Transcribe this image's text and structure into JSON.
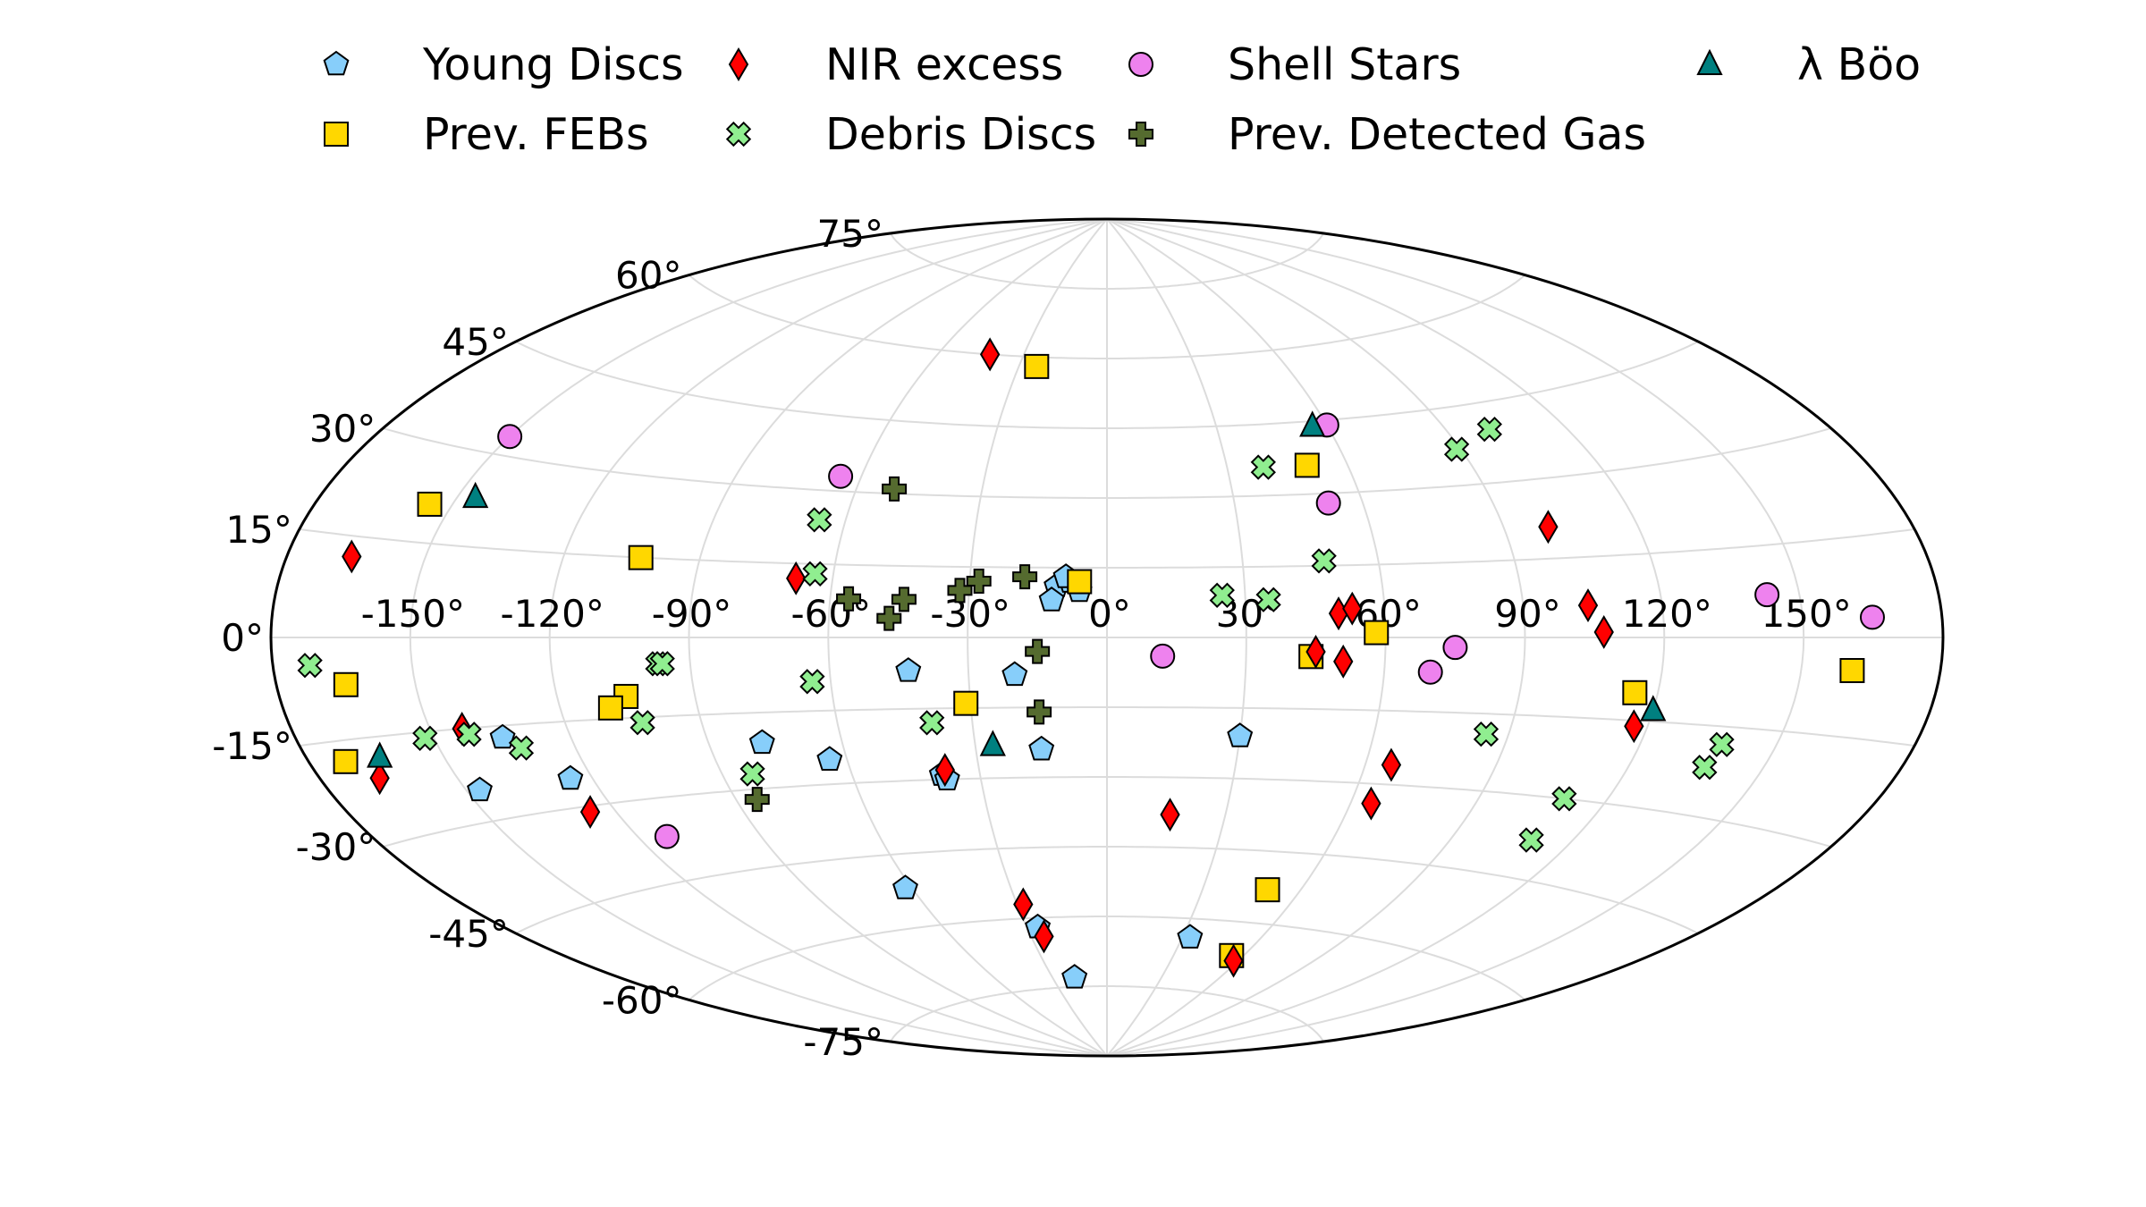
{
  "chart_data": {
    "type": "scatter",
    "projection": "aitoff",
    "x_units": "degrees",
    "y_units": "degrees",
    "xlim": [
      -180,
      180
    ],
    "ylim": [
      -90,
      90
    ],
    "grid": true,
    "legend_position": "top",
    "lon_tick_labels": [
      "-150°",
      "-120°",
      "-90°",
      "-60°",
      "-30°",
      "0°",
      "30°",
      "60°",
      "90°",
      "120°",
      "150°"
    ],
    "lat_tick_labels": [
      "-75°",
      "-60°",
      "-45°",
      "-30°",
      "-15°",
      "0°",
      "15°",
      "30°",
      "45°",
      "60°",
      "75°"
    ],
    "lon_tick_values": [
      -150,
      -120,
      -90,
      -60,
      -30,
      0,
      30,
      60,
      90,
      120,
      150
    ],
    "lat_tick_values": [
      -75,
      -60,
      -45,
      -30,
      -15,
      0,
      15,
      30,
      45,
      60,
      75
    ],
    "series": [
      {
        "name": "Young Discs",
        "marker": "pentagon",
        "color": "#87CEFA",
        "points": [
          [
            -11,
            11
          ],
          [
            -8,
            12
          ],
          [
            -9,
            13
          ],
          [
            -6,
            10
          ],
          [
            -12,
            8
          ],
          [
            -43,
            -7
          ],
          [
            -20,
            -8
          ],
          [
            -78,
            -21
          ],
          [
            -64,
            -25
          ],
          [
            -125,
            -25
          ],
          [
            -39,
            -29
          ],
          [
            -38,
            -30
          ],
          [
            -147,
            -25
          ],
          [
            -135,
            -17
          ],
          [
            -15,
            -24
          ],
          [
            30,
            -21
          ],
          [
            -26,
            -62
          ],
          [
            -18,
            -73
          ],
          [
            -62,
            -52
          ],
          [
            33,
            -64
          ]
        ]
      },
      {
        "name": "Prev. FEBs",
        "marker": "square",
        "color": "#FFD700",
        "points": [
          [
            -155,
            21
          ],
          [
            -103,
            15
          ],
          [
            -24,
            58
          ],
          [
            -6,
            12
          ],
          [
            50,
            36
          ],
          [
            58,
            1
          ],
          [
            44,
            -4
          ],
          [
            115,
            -10
          ],
          [
            161,
            -5
          ],
          [
            -165,
            -7
          ],
          [
            -105,
            -11
          ],
          [
            -109,
            -13
          ],
          [
            -31,
            -14
          ],
          [
            -172,
            -18
          ],
          [
            50,
            -53
          ],
          [
            55,
            -67
          ]
        ]
      },
      {
        "name": "NIR excess",
        "marker": "diamond",
        "color": "#FF0000",
        "points": [
          [
            -166,
            12
          ],
          [
            -68,
            12
          ],
          [
            -42,
            60
          ],
          [
            100,
            21
          ],
          [
            50,
            5
          ],
          [
            53,
            6
          ],
          [
            104,
            6
          ],
          [
            107,
            1
          ],
          [
            45,
            -3
          ],
          [
            51,
            -5
          ],
          [
            117,
            -16
          ],
          [
            -143,
            -15
          ],
          [
            -167,
            -21
          ],
          [
            -126,
            -31
          ],
          [
            -38,
            -28
          ],
          [
            16,
            -38
          ],
          [
            66,
            -26
          ],
          [
            65,
            -34
          ],
          [
            -28,
            -57
          ],
          [
            -25,
            -64
          ],
          [
            58,
            -68
          ]
        ]
      },
      {
        "name": "Debris Discs",
        "marker": "x",
        "color": "#90EE90",
        "points": [
          [
            -66,
            24
          ],
          [
            -64,
            13
          ],
          [
            39,
            36
          ],
          [
            101,
            40
          ],
          [
            89,
            37
          ],
          [
            48,
            16
          ],
          [
            25,
            9
          ],
          [
            35,
            8
          ],
          [
            -172,
            -4
          ],
          [
            -97,
            -5
          ],
          [
            -96,
            -5
          ],
          [
            -64,
            -9
          ],
          [
            -103,
            -16
          ],
          [
            -142,
            -16
          ],
          [
            -152,
            -16
          ],
          [
            -132,
            -19
          ],
          [
            -39,
            -18
          ],
          [
            85,
            -19
          ],
          [
            138,
            -18
          ],
          [
            137,
            -22
          ],
          [
            -83,
            -27
          ],
          [
            110,
            -30
          ],
          [
            110,
            -38
          ]
        ]
      },
      {
        "name": "Shell Stars",
        "marker": "circle",
        "color": "#EE82EE",
        "points": [
          [
            -150,
            33
          ],
          [
            -65,
            33
          ],
          [
            60,
            44
          ],
          [
            52,
            28
          ],
          [
            12,
            -4
          ],
          [
            75,
            -2
          ],
          [
            70,
            -7
          ],
          [
            143,
            7
          ],
          [
            165,
            3
          ],
          [
            -113,
            -37
          ]
        ]
      },
      {
        "name": "Prev. Detected Gas",
        "marker": "plus",
        "color": "#556B2F",
        "points": [
          [
            -51,
            31
          ],
          [
            -18,
            13
          ],
          [
            -28,
            12
          ],
          [
            -32,
            10
          ],
          [
            -44,
            8
          ],
          [
            -56,
            8
          ],
          [
            -47,
            4
          ],
          [
            -15,
            -3
          ],
          [
            -15,
            -16
          ],
          [
            -85,
            -32
          ]
        ]
      },
      {
        "name": "λ Böo",
        "marker": "triangle",
        "color": "#008080",
        "points": [
          [
            -146,
            23
          ],
          [
            56,
            44
          ],
          [
            120,
            -13
          ],
          [
            -26,
            -23
          ],
          [
            -164,
            -18
          ]
        ]
      }
    ]
  }
}
